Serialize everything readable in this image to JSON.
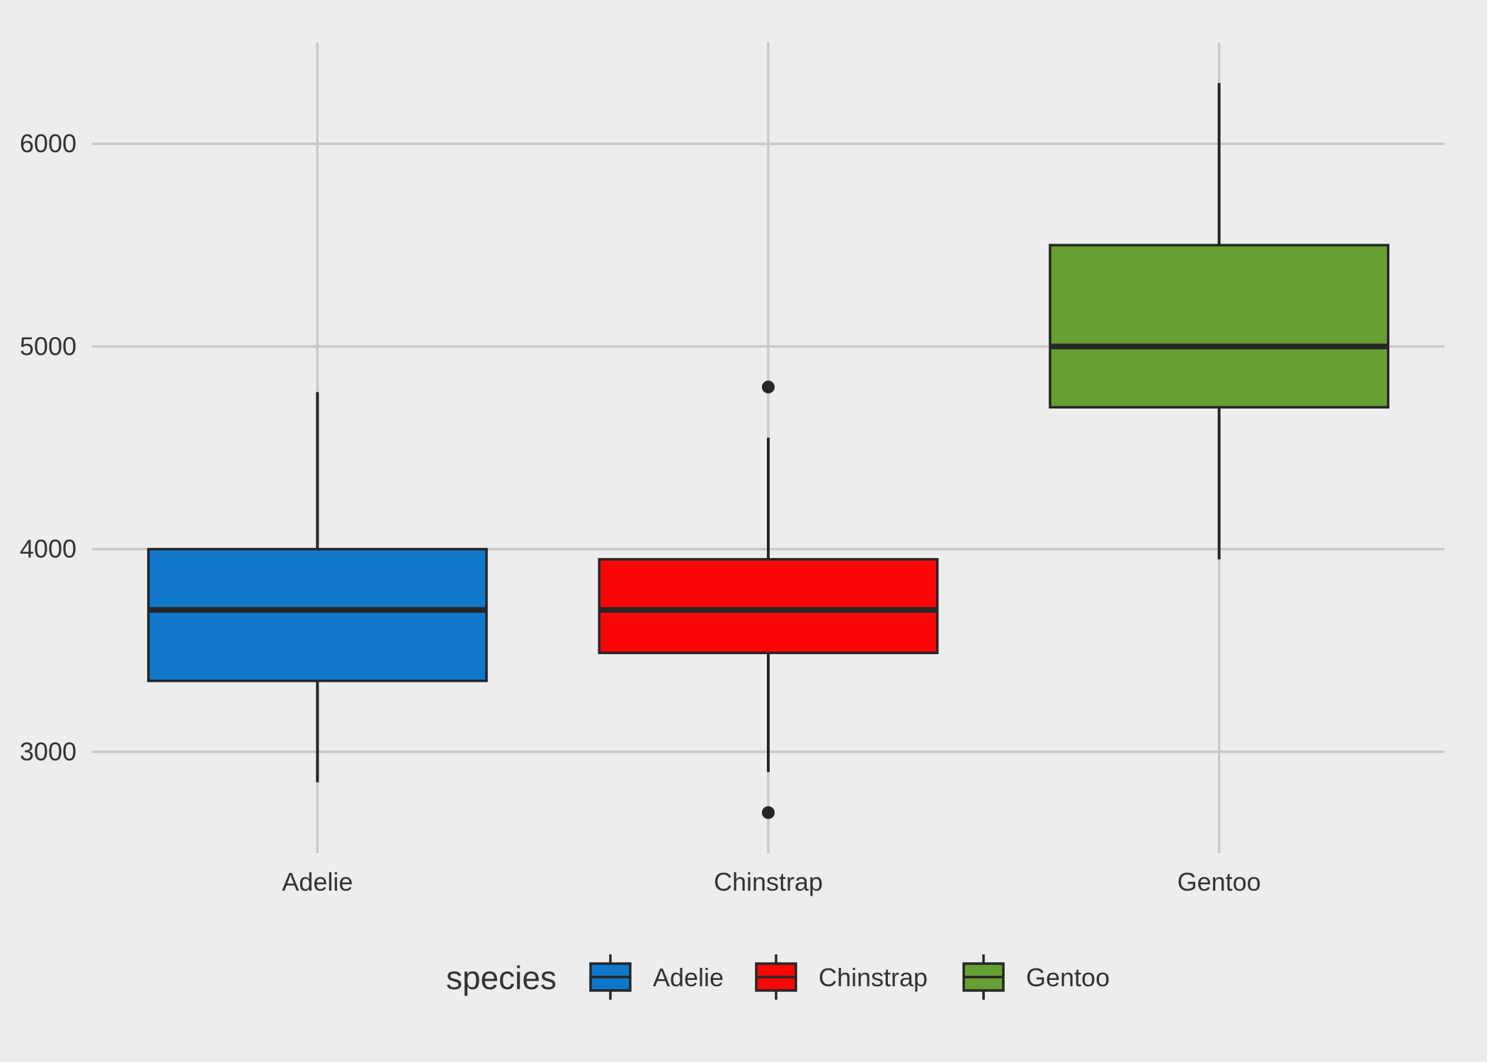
{
  "chart_data": {
    "type": "box",
    "title": "",
    "xlabel": "",
    "ylabel": "",
    "categories": [
      "Adelie",
      "Chinstrap",
      "Gentoo"
    ],
    "ylim": [
      2500,
      6500
    ],
    "yticks": [
      3000,
      4000,
      5000,
      6000
    ],
    "grid": true,
    "legend": {
      "title": "species",
      "position": "bottom",
      "entries": [
        "Adelie",
        "Chinstrap",
        "Gentoo"
      ]
    },
    "series": [
      {
        "name": "Adelie",
        "color": "#0f78cb",
        "whisker_low": 2850,
        "q1": 3350,
        "median": 3700,
        "q3": 4000,
        "whisker_high": 4775,
        "outliers": []
      },
      {
        "name": "Chinstrap",
        "color": "#fb0707",
        "whisker_low": 2900,
        "q1": 3488,
        "median": 3700,
        "q3": 3950,
        "whisker_high": 4550,
        "outliers": [
          4800,
          2700
        ]
      },
      {
        "name": "Gentoo",
        "color": "#669f33",
        "whisker_low": 3950,
        "q1": 4700,
        "median": 5000,
        "q3": 5500,
        "whisker_high": 6300,
        "outliers": []
      }
    ]
  }
}
